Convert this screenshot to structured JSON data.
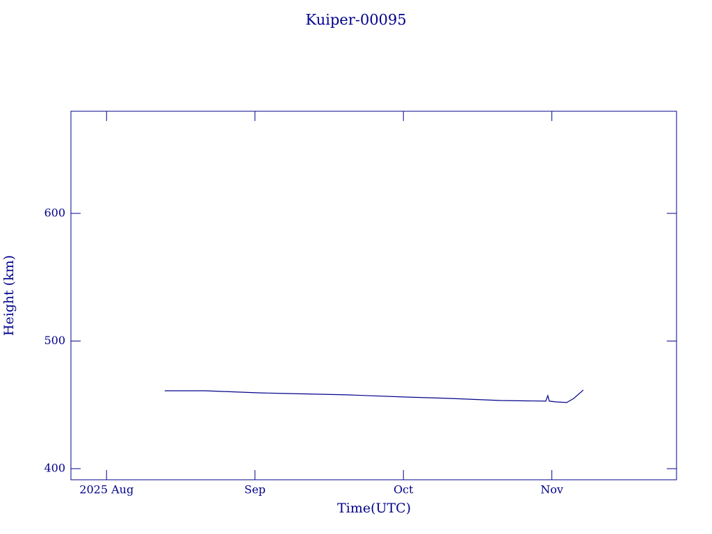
{
  "chart_data": {
    "type": "line",
    "title": "Kuiper-00095",
    "x_label": "Time(UTC)",
    "y_label": "Height (km)",
    "x": [
      8.392,
      8.664,
      9.025,
      9.203,
      9.624,
      10.013,
      10.327,
      10.655,
      10.959,
      10.973,
      10.983,
      11.029,
      11.1,
      11.147,
      11.212
    ],
    "series": [
      {
        "name": "Kuiper-00095",
        "color": "#00008b",
        "values": [
          461.0,
          461.0,
          459.4,
          458.9,
          457.8,
          456.1,
          455.0,
          453.4,
          452.9,
          457.2,
          452.9,
          452.3,
          451.8,
          455.0,
          461.6
        ]
      }
    ],
    "xlim": [
      7.76,
      11.84
    ],
    "xticks": [
      {
        "value": 8,
        "label": "2025 Aug"
      },
      {
        "value": 9,
        "label": "Sep"
      },
      {
        "value": 10,
        "label": "Oct"
      },
      {
        "value": 11,
        "label": "Nov"
      }
    ],
    "ylim": [
      391.3,
      680
    ],
    "yticks": [
      400,
      500,
      600
    ],
    "axis_color": "#00008b"
  }
}
